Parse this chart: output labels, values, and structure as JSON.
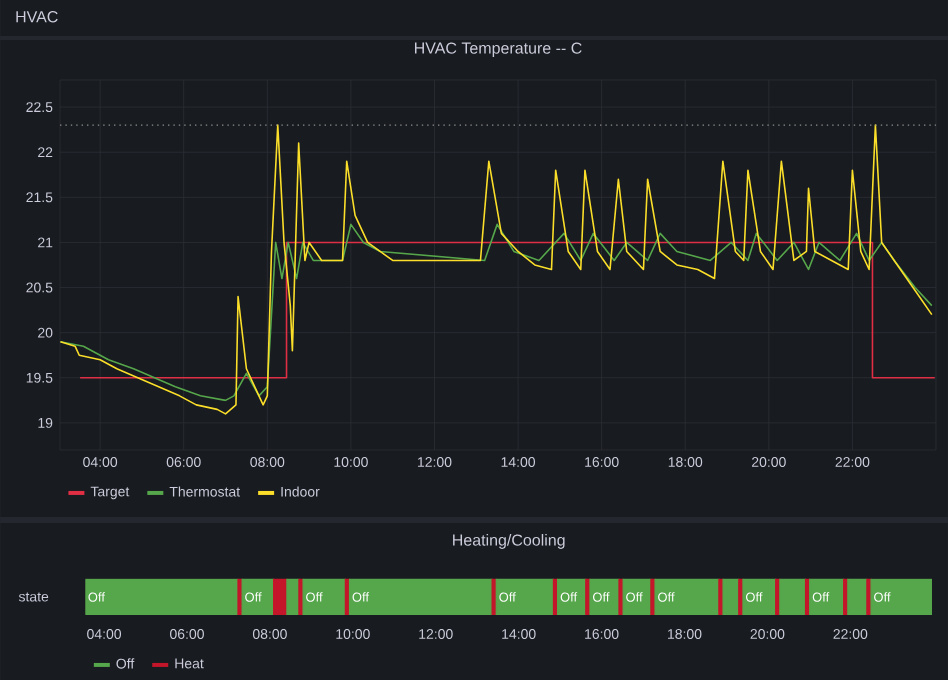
{
  "chart_data": [
    {
      "type": "line",
      "title": "HVAC Temperature -- C",
      "annotations": [
        "HVAC"
      ],
      "xlim": [
        3.04,
        24.0
      ],
      "xticks": [
        {
          "value": 4,
          "label": "04:00"
        },
        {
          "value": 6,
          "label": "06:00"
        },
        {
          "value": 8,
          "label": "08:00"
        },
        {
          "value": 10,
          "label": "10:00"
        },
        {
          "value": 12,
          "label": "12:00"
        },
        {
          "value": 14,
          "label": "14:00"
        },
        {
          "value": 16,
          "label": "16:00"
        },
        {
          "value": 18,
          "label": "18:00"
        },
        {
          "value": 20,
          "label": "20:00"
        },
        {
          "value": 22,
          "label": "22:00"
        }
      ],
      "ylim": [
        18.7,
        22.8
      ],
      "yticks": [
        19,
        19.5,
        20,
        20.5,
        21,
        21.5,
        22,
        22.5
      ],
      "grid": true,
      "legend": "bottom left",
      "line_style": "solid",
      "ref_lines": [
        {
          "axis": "y",
          "value": 22.3,
          "color": "#8e8e8e",
          "line_style": "dotted"
        }
      ],
      "series": [
        {
          "name": "Target",
          "type": "step",
          "color": "#e02f44",
          "x": [
            3.52,
            8.46,
            22.48,
            23.97
          ],
          "values": [
            19.5,
            21.0,
            19.5,
            19.5
          ]
        },
        {
          "name": "Thermostat",
          "color": "#56a64b",
          "x": [
            3.05,
            3.6,
            4.2,
            4.8,
            5.3,
            5.8,
            6.4,
            7.0,
            7.2,
            7.5,
            7.8,
            8.0,
            8.2,
            8.35,
            8.5,
            8.7,
            8.85,
            9.1,
            9.8,
            10.0,
            10.3,
            10.7,
            13.2,
            13.5,
            13.9,
            14.5,
            15.1,
            15.5,
            15.8,
            16.3,
            16.6,
            17.1,
            17.4,
            17.8,
            18.6,
            19.1,
            19.5,
            19.7,
            20.2,
            20.6,
            20.95,
            21.2,
            21.7,
            22.1,
            22.4,
            22.7,
            23.0,
            23.5,
            23.9
          ],
          "values": [
            19.9,
            19.85,
            19.7,
            19.6,
            19.5,
            19.4,
            19.3,
            19.25,
            19.3,
            19.55,
            19.3,
            19.4,
            21.0,
            20.6,
            21.0,
            20.6,
            21.0,
            20.8,
            20.8,
            21.2,
            21.0,
            20.9,
            20.8,
            21.2,
            20.9,
            20.8,
            21.1,
            20.8,
            21.1,
            20.8,
            21.0,
            20.8,
            21.1,
            20.9,
            20.8,
            21.0,
            20.8,
            21.1,
            20.8,
            21.0,
            20.7,
            21.0,
            20.8,
            21.1,
            20.8,
            21.0,
            20.8,
            20.5,
            20.3
          ]
        },
        {
          "name": "Indoor",
          "color": "#fade2a",
          "x": [
            3.05,
            3.4,
            3.5,
            4.0,
            4.4,
            4.9,
            5.4,
            5.9,
            6.3,
            6.8,
            7.0,
            7.25,
            7.3,
            7.5,
            7.7,
            7.9,
            8.0,
            8.1,
            8.25,
            8.4,
            8.55,
            8.6,
            8.75,
            8.9,
            9.0,
            9.3,
            9.8,
            9.9,
            10.1,
            10.4,
            10.7,
            11.0,
            13.1,
            13.3,
            13.6,
            14.0,
            14.4,
            14.8,
            14.9,
            15.2,
            15.5,
            15.6,
            15.9,
            16.2,
            16.4,
            16.6,
            17.0,
            17.1,
            17.4,
            17.8,
            18.3,
            18.7,
            18.9,
            19.2,
            19.4,
            19.5,
            19.8,
            20.1,
            20.3,
            20.6,
            20.9,
            20.95,
            21.1,
            21.5,
            21.9,
            22.0,
            22.2,
            22.4,
            22.55,
            22.7,
            23.0,
            23.3,
            23.6,
            23.9
          ],
          "values": [
            19.9,
            19.85,
            19.75,
            19.7,
            19.6,
            19.5,
            19.4,
            19.3,
            19.2,
            19.15,
            19.1,
            19.2,
            20.4,
            19.6,
            19.4,
            19.2,
            19.3,
            20.9,
            22.3,
            21.0,
            20.3,
            19.8,
            22.1,
            20.8,
            21.0,
            20.8,
            20.8,
            21.9,
            21.3,
            21.0,
            20.9,
            20.8,
            20.8,
            21.9,
            21.1,
            20.9,
            20.75,
            20.7,
            21.8,
            20.9,
            20.7,
            21.8,
            20.9,
            20.7,
            21.7,
            20.9,
            20.7,
            21.7,
            20.9,
            20.75,
            20.7,
            20.6,
            21.9,
            20.9,
            20.8,
            21.8,
            20.9,
            20.7,
            21.9,
            20.8,
            20.9,
            21.6,
            20.9,
            20.8,
            20.7,
            21.8,
            20.9,
            20.7,
            22.3,
            21.0,
            20.8,
            20.6,
            20.4,
            20.2
          ]
        }
      ]
    },
    {
      "type": "bar",
      "orientation": "horizontal",
      "title": "Heating/Cooling",
      "categories": [
        "state"
      ],
      "xlim": [
        3.55,
        23.97
      ],
      "xticks": [
        {
          "value": 4,
          "label": "04:00"
        },
        {
          "value": 6,
          "label": "06:00"
        },
        {
          "value": 8,
          "label": "08:00"
        },
        {
          "value": 10,
          "label": "10:00"
        },
        {
          "value": 12,
          "label": "12:00"
        },
        {
          "value": 14,
          "label": "14:00"
        },
        {
          "value": 16,
          "label": "16:00"
        },
        {
          "value": 18,
          "label": "18:00"
        },
        {
          "value": 20,
          "label": "20:00"
        },
        {
          "value": 22,
          "label": "22:00"
        }
      ],
      "legend": "bottom left",
      "series": [
        {
          "name": "Off",
          "color": "#56a64b",
          "base": [
            3.55
          ],
          "values": [
            3.68
          ],
          "value_labels": [
            "Off"
          ]
        },
        {
          "name": "Heat",
          "color": "#c4162a",
          "base": [
            7.23
          ],
          "values": [
            0.1
          ]
        },
        {
          "color": "#56a64b",
          "base": [
            7.33
          ],
          "values": [
            0.76
          ],
          "value_labels": [
            "Off"
          ]
        },
        {
          "color": "#c4162a",
          "base": [
            8.09
          ],
          "values": [
            0.32
          ]
        },
        {
          "color": "#56a64b",
          "base": [
            8.41
          ],
          "values": [
            0.29
          ]
        },
        {
          "color": "#c4162a",
          "base": [
            8.7
          ],
          "values": [
            0.1
          ]
        },
        {
          "color": "#56a64b",
          "base": [
            8.8
          ],
          "values": [
            1.02
          ],
          "value_labels": [
            "Off"
          ]
        },
        {
          "color": "#c4162a",
          "base": [
            9.82
          ],
          "values": [
            0.1
          ]
        },
        {
          "color": "#56a64b",
          "base": [
            9.92
          ],
          "values": [
            3.44
          ],
          "value_labels": [
            "Off"
          ]
        },
        {
          "color": "#c4162a",
          "base": [
            13.36
          ],
          "values": [
            0.1
          ]
        },
        {
          "color": "#56a64b",
          "base": [
            13.46
          ],
          "values": [
            1.38
          ],
          "value_labels": [
            "Off"
          ]
        },
        {
          "color": "#c4162a",
          "base": [
            14.84
          ],
          "values": [
            0.1
          ]
        },
        {
          "color": "#56a64b",
          "base": [
            14.94
          ],
          "values": [
            0.68
          ],
          "value_labels": [
            "Off"
          ]
        },
        {
          "color": "#c4162a",
          "base": [
            15.62
          ],
          "values": [
            0.1
          ]
        },
        {
          "color": "#56a64b",
          "base": [
            15.72
          ],
          "values": [
            0.7
          ],
          "value_labels": [
            "Off"
          ]
        },
        {
          "color": "#c4162a",
          "base": [
            16.42
          ],
          "values": [
            0.1
          ]
        },
        {
          "color": "#56a64b",
          "base": [
            16.52
          ],
          "values": [
            0.67
          ],
          "value_labels": [
            "Off"
          ]
        },
        {
          "color": "#c4162a",
          "base": [
            17.19
          ],
          "values": [
            0.1
          ]
        },
        {
          "color": "#56a64b",
          "base": [
            17.29
          ],
          "values": [
            1.54
          ],
          "value_labels": [
            "Off"
          ]
        },
        {
          "color": "#c4162a",
          "base": [
            18.83
          ],
          "values": [
            0.1
          ]
        },
        {
          "color": "#56a64b",
          "base": [
            18.93
          ],
          "values": [
            0.38
          ]
        },
        {
          "color": "#c4162a",
          "base": [
            19.31
          ],
          "values": [
            0.1
          ]
        },
        {
          "color": "#56a64b",
          "base": [
            19.41
          ],
          "values": [
            0.79
          ],
          "value_labels": [
            "Off"
          ]
        },
        {
          "color": "#c4162a",
          "base": [
            20.2
          ],
          "values": [
            0.1
          ]
        },
        {
          "color": "#56a64b",
          "base": [
            20.3
          ],
          "values": [
            0.62
          ]
        },
        {
          "color": "#c4162a",
          "base": [
            20.92
          ],
          "values": [
            0.1
          ]
        },
        {
          "color": "#56a64b",
          "base": [
            21.02
          ],
          "values": [
            0.82
          ],
          "value_labels": [
            "Off"
          ]
        },
        {
          "color": "#c4162a",
          "base": [
            21.84
          ],
          "values": [
            0.1
          ]
        },
        {
          "color": "#56a64b",
          "base": [
            21.94
          ],
          "values": [
            0.46
          ]
        },
        {
          "color": "#c4162a",
          "base": [
            22.4
          ],
          "values": [
            0.1
          ]
        },
        {
          "color": "#56a64b",
          "base": [
            22.5
          ],
          "values": [
            1.47
          ],
          "value_labels": [
            "Off"
          ]
        }
      ]
    }
  ]
}
